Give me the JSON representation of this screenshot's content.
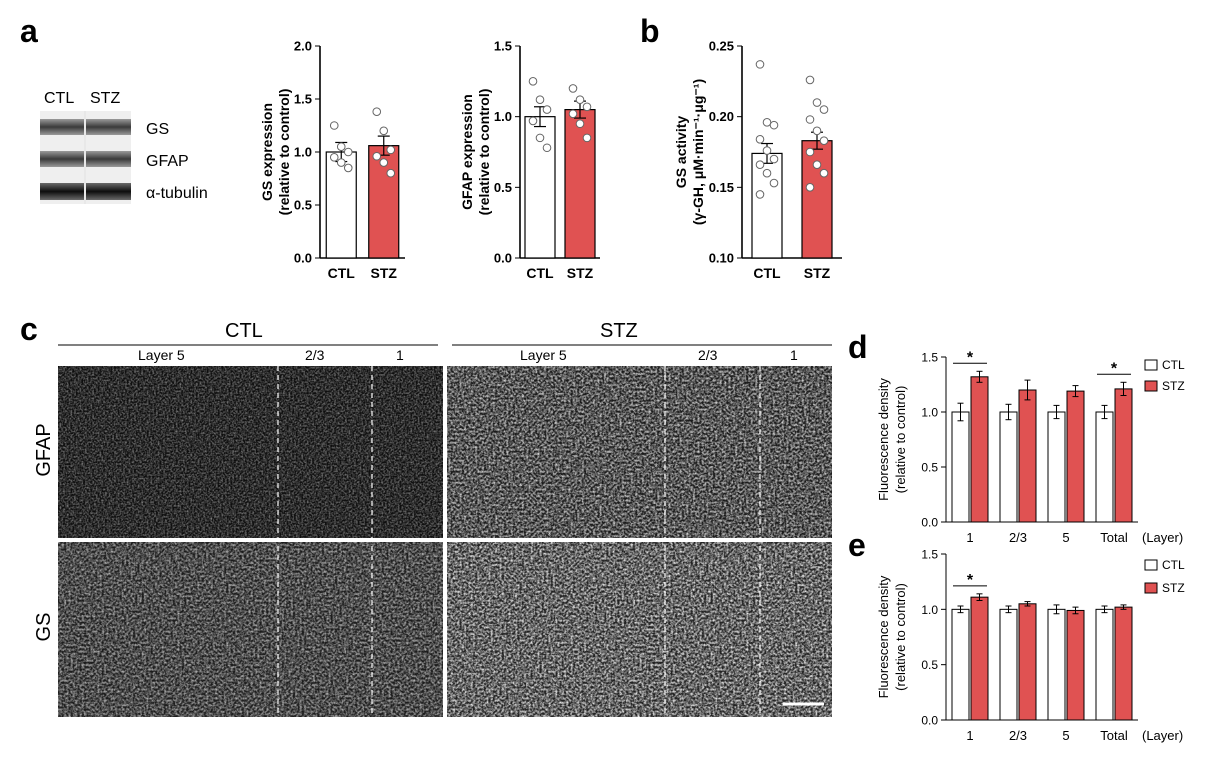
{
  "panels": {
    "a": "a",
    "b": "b",
    "c": "c",
    "d": "d",
    "e": "e"
  },
  "colors": {
    "ctl": "#ffffff",
    "stz": "#e05252",
    "edge": "#000000",
    "point": "#ffffff"
  },
  "blot": {
    "lanes": [
      "CTL",
      "STZ"
    ],
    "bands": [
      "GS",
      "GFAP",
      "α-tubulin"
    ]
  },
  "micro": {
    "groups": [
      "CTL",
      "STZ"
    ],
    "layers": [
      "Layer 5",
      "2/3",
      "1"
    ],
    "rows": [
      "GFAP",
      "GS"
    ]
  },
  "chart_data": [
    {
      "id": "gs-expression",
      "type": "bar",
      "categories": [
        "CTL",
        "STZ"
      ],
      "values": [
        1.0,
        1.06
      ],
      "errors": [
        0.09,
        0.09
      ],
      "points": [
        [
          1.25,
          1.05,
          1.0,
          0.95,
          0.9,
          0.85
        ],
        [
          1.38,
          1.2,
          1.02,
          0.96,
          0.9,
          0.8
        ]
      ],
      "ylabel": [
        "GS expression",
        "(relative to control)"
      ],
      "ylim": [
        0,
        2.0
      ],
      "yticks": [
        "0.0",
        "0.5",
        "1.0",
        "1.5",
        "2.0"
      ],
      "ytick_values": [
        0,
        0.5,
        1.0,
        1.5,
        2.0
      ]
    },
    {
      "id": "gfap-expression",
      "type": "bar",
      "categories": [
        "CTL",
        "STZ"
      ],
      "values": [
        1.0,
        1.05
      ],
      "errors": [
        0.07,
        0.06
      ],
      "points": [
        [
          1.25,
          1.12,
          1.05,
          0.97,
          0.85,
          0.78
        ],
        [
          1.2,
          1.12,
          1.07,
          1.02,
          0.95,
          0.85
        ]
      ],
      "ylabel": [
        "GFAP expression",
        "(relative to control)"
      ],
      "ylim": [
        0,
        1.5
      ],
      "yticks": [
        "0.0",
        "0.5",
        "1.0",
        "1.5"
      ],
      "ytick_values": [
        0,
        0.5,
        1.0,
        1.5
      ]
    },
    {
      "id": "gs-activity",
      "type": "bar",
      "categories": [
        "CTL",
        "STZ"
      ],
      "values": [
        0.174,
        0.183
      ],
      "errors": [
        0.007,
        0.006
      ],
      "points": [
        [
          0.237,
          0.196,
          0.194,
          0.184,
          0.176,
          0.17,
          0.166,
          0.16,
          0.153,
          0.145
        ],
        [
          0.226,
          0.21,
          0.205,
          0.198,
          0.19,
          0.183,
          0.175,
          0.166,
          0.16,
          0.15
        ]
      ],
      "ylabel": [
        "GS activity",
        "(γ-GH, μM·min⁻¹·μg⁻¹)"
      ],
      "ylim": [
        0.1,
        0.25
      ],
      "yticks": [
        "0.10",
        "0.15",
        "0.20",
        "0.25"
      ],
      "ytick_values": [
        0.1,
        0.15,
        0.2,
        0.25
      ]
    },
    {
      "id": "gfap-density",
      "type": "bar",
      "categories": [
        "1",
        "2/3",
        "5",
        "Total"
      ],
      "xlabel": "(Layer)",
      "series": [
        {
          "name": "CTL",
          "values": [
            1.0,
            1.0,
            1.0,
            1.0
          ],
          "errors": [
            0.08,
            0.07,
            0.06,
            0.06
          ]
        },
        {
          "name": "STZ",
          "values": [
            1.32,
            1.2,
            1.19,
            1.21
          ],
          "errors": [
            0.05,
            0.09,
            0.05,
            0.06
          ]
        }
      ],
      "significance": [
        {
          "category": "1",
          "label": "*"
        },
        {
          "category": "Total",
          "label": "*"
        }
      ],
      "ylabel": [
        "Fluorescence density",
        "(relative to control)"
      ],
      "ylim": [
        0,
        1.5
      ],
      "yticks": [
        "0.0",
        "0.5",
        "1.0",
        "1.5"
      ],
      "ytick_values": [
        0,
        0.5,
        1.0,
        1.5
      ]
    },
    {
      "id": "gs-density",
      "type": "bar",
      "categories": [
        "1",
        "2/3",
        "5",
        "Total"
      ],
      "xlabel": "(Layer)",
      "series": [
        {
          "name": "CTL",
          "values": [
            1.0,
            1.0,
            1.0,
            1.0
          ],
          "errors": [
            0.03,
            0.03,
            0.04,
            0.03
          ]
        },
        {
          "name": "STZ",
          "values": [
            1.11,
            1.05,
            0.99,
            1.02
          ],
          "errors": [
            0.03,
            0.02,
            0.03,
            0.02
          ]
        }
      ],
      "significance": [
        {
          "category": "1",
          "label": "*"
        }
      ],
      "ylabel": [
        "Fluorescence density",
        "(relative to control)"
      ],
      "ylim": [
        0,
        1.5
      ],
      "yticks": [
        "0.0",
        "0.5",
        "1.0",
        "1.5"
      ],
      "ytick_values": [
        0,
        0.5,
        1.0,
        1.5
      ]
    }
  ]
}
